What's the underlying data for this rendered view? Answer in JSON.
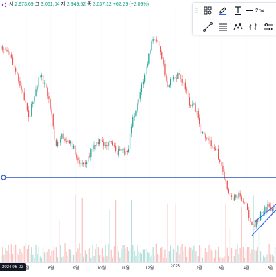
{
  "ohlc": {
    "open_label": "시",
    "open": "2,973.69",
    "high_label": "고",
    "high": "3,061.04",
    "low_label": "저",
    "low": "2,949.52",
    "close_label": "종",
    "close": "3,037.12",
    "change": "+62.29 (+2.09%)"
  },
  "toolbar": {
    "width_label": "2px",
    "colors": {
      "accent": "#2962ff",
      "text": "#131722"
    },
    "row1": [
      "grid-dots-icon",
      "pencil-icon",
      "text-icon",
      "line-width-icon"
    ],
    "row2": [
      "trend-line-icon",
      "horizontal-lines-icon",
      "pattern-icon",
      "bars-pattern-icon",
      "settings-lines-icon"
    ]
  },
  "date_badge": "2024-06-02",
  "x_axis": {
    "ticks": [
      {
        "label": "7월",
        "x": 38
      },
      {
        "label": "8월",
        "x": 74
      },
      {
        "label": "9월",
        "x": 110
      },
      {
        "label": "10월",
        "x": 147
      },
      {
        "label": "11월",
        "x": 182
      },
      {
        "label": "12월",
        "x": 217
      },
      {
        "label": "2025",
        "x": 254
      },
      {
        "label": "2월",
        "x": 289
      },
      {
        "label": "3월",
        "x": 321
      },
      {
        "label": "4월",
        "x": 357
      },
      {
        "label": "5월",
        "x": 392
      }
    ]
  },
  "colors": {
    "up": "#26a69a",
    "down": "#ef5350",
    "hline": "#2951c4",
    "trend": "#2962ff",
    "grid": "#f0f3fa"
  }
}
